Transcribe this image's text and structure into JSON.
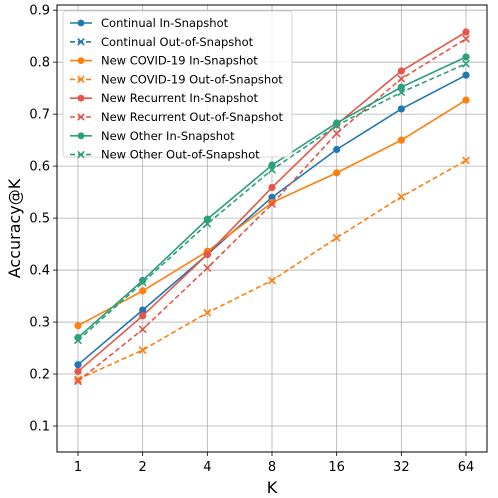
{
  "chart_data": {
    "type": "line",
    "xlabel": "K",
    "ylabel": "Accuracy@K",
    "x": [
      1,
      2,
      4,
      8,
      16,
      32,
      64
    ],
    "x_tick_labels": [
      "1",
      "2",
      "4",
      "8",
      "16",
      "32",
      "64"
    ],
    "x_scale": "log2",
    "ylim": [
      0.05,
      0.91
    ],
    "y_ticks": [
      0.1,
      0.2,
      0.3,
      0.4,
      0.5,
      0.6,
      0.7,
      0.8,
      0.9
    ],
    "y_tick_labels": [
      "0.1",
      "0.2",
      "0.3",
      "0.4",
      "0.5",
      "0.6",
      "0.7",
      "0.8",
      "0.9"
    ],
    "grid": true,
    "legend_position": "top-left",
    "series": [
      {
        "name": "Continual In-Snapshot",
        "color": "#1f77b4",
        "style": "solid",
        "marker": "circle",
        "values": [
          0.218,
          0.323,
          0.43,
          0.54,
          0.632,
          0.71,
          0.775
        ]
      },
      {
        "name": "Continual Out-of-Snapshot",
        "color": "#1f77b4",
        "style": "dashed",
        "marker": "x",
        "values": [
          null,
          null,
          null,
          null,
          null,
          null,
          null
        ]
      },
      {
        "name": "New COVID-19 In-Snapshot",
        "color": "#ff7f0e",
        "style": "solid",
        "marker": "circle",
        "values": [
          0.293,
          0.36,
          0.436,
          0.53,
          0.587,
          0.65,
          0.727
        ]
      },
      {
        "name": "New COVID-19 Out-of-Snapshot",
        "color": "#ff7f0e",
        "style": "dashed",
        "marker": "x",
        "values": [
          0.19,
          0.246,
          0.318,
          0.38,
          0.462,
          0.541,
          0.611
        ]
      },
      {
        "name": "New Recurrent In-Snapshot",
        "color": "#e45649",
        "style": "solid",
        "marker": "circle",
        "values": [
          0.205,
          0.312,
          0.43,
          0.559,
          0.68,
          0.783,
          0.858
        ]
      },
      {
        "name": "New Recurrent Out-of-Snapshot",
        "color": "#e45649",
        "style": "dashed",
        "marker": "x",
        "values": [
          0.186,
          0.286,
          0.404,
          0.527,
          0.663,
          0.768,
          0.845
        ]
      },
      {
        "name": "New Other In-Snapshot",
        "color": "#2ca07c",
        "style": "solid",
        "marker": "circle",
        "values": [
          0.27,
          0.38,
          0.498,
          0.602,
          0.683,
          0.752,
          0.81
        ]
      },
      {
        "name": "New Other Out-of-Snapshot",
        "color": "#2ca07c",
        "style": "dashed",
        "marker": "x",
        "values": [
          0.265,
          0.376,
          0.489,
          0.593,
          0.678,
          0.742,
          0.797
        ]
      }
    ]
  }
}
